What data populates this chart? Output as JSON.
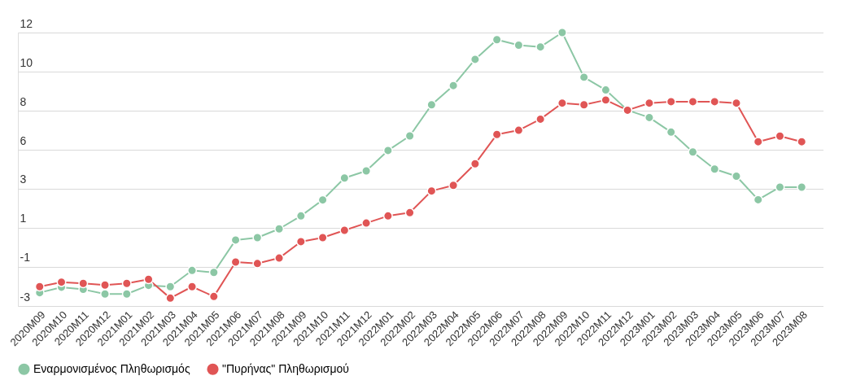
{
  "chart_data": {
    "type": "line",
    "categories": [
      "2020M09",
      "2020M10",
      "2020M11",
      "2020M12",
      "2021M01",
      "2021M02",
      "2021M03",
      "2021M04",
      "2021M05",
      "2021M06",
      "2021M07",
      "2021M08",
      "2021M09",
      "2021M10",
      "2021M11",
      "2021M12",
      "2022M01",
      "2022M02",
      "2022M03",
      "2022M04",
      "2022M05",
      "2022M06",
      "2022M07",
      "2022M08",
      "2022M09",
      "2022M10",
      "2022M11",
      "2022M12",
      "2023M01",
      "2023M02",
      "2023M03",
      "2023M04",
      "2023M05",
      "2023M06",
      "2023M07",
      "2023M08"
    ],
    "series": [
      {
        "name": "Εναρμονισμένος Πληθωρισμός",
        "color": "#8cc7a5",
        "values": [
          -2.27,
          -1.97,
          -2.09,
          -2.34,
          -2.34,
          -1.87,
          -1.94,
          -1.05,
          -1.16,
          0.62,
          0.75,
          1.23,
          1.94,
          2.82,
          4.02,
          4.41,
          5.53,
          6.33,
          8.04,
          9.09,
          10.53,
          11.61,
          11.31,
          11.21,
          12,
          9.55,
          8.85,
          7.74,
          7.34,
          6.54,
          5.45,
          4.51,
          4.12,
          2.83,
          3.52,
          3.52
        ]
      },
      {
        "name": "\"Πυρήνας\" Πληθωρισμού",
        "color": "#e05555",
        "values": [
          -1.94,
          -1.69,
          -1.76,
          -1.85,
          -1.76,
          -1.54,
          -2.57,
          -1.94,
          -2.48,
          -0.59,
          -0.67,
          -0.37,
          0.53,
          0.75,
          1.15,
          1.55,
          1.94,
          2.12,
          3.31,
          3.62,
          4.8,
          6.41,
          6.64,
          7.25,
          8.13,
          8.04,
          8.3,
          7.74,
          8.13,
          8.21,
          8.21,
          8.21,
          8.13,
          6.01,
          6.32,
          6.01
        ]
      }
    ],
    "ylim": [
      -3,
      12
    ],
    "yticks": [
      -3,
      {
        "value": -0.857,
        "label": "-1"
      },
      {
        "value": 1.286,
        "label": "1"
      },
      {
        "value": 3.429,
        "label": "3"
      },
      {
        "value": 5.571,
        "label": "6"
      },
      {
        "value": 7.714,
        "label": "8"
      },
      {
        "value": 9.857,
        "label": "10"
      },
      12
    ],
    "grid": "y",
    "legend": "bottom",
    "marker": "circle",
    "line_style": "solid"
  }
}
